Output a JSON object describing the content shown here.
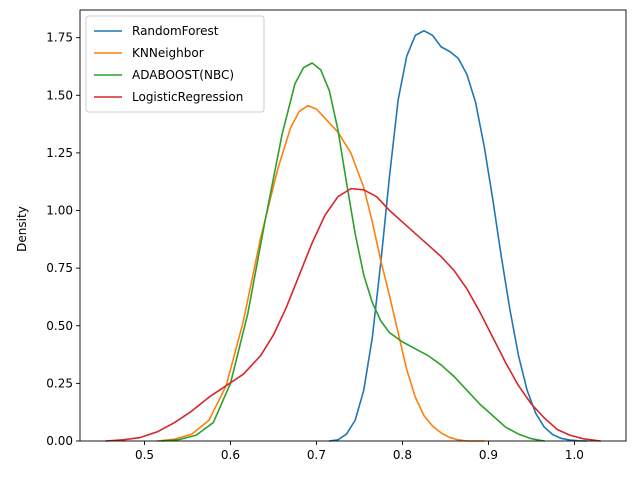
{
  "chart_data": {
    "type": "line",
    "title": "",
    "xlabel": "",
    "ylabel": "Density",
    "xlim": [
      0.425,
      1.06
    ],
    "ylim": [
      0,
      1.87
    ],
    "xticks": [
      0.5,
      0.6,
      0.7,
      0.8,
      0.9,
      1.0
    ],
    "xtick_labels": [
      "0.5",
      "0.6",
      "0.7",
      "0.8",
      "0.9",
      "1.0"
    ],
    "yticks": [
      0,
      0.25,
      0.5,
      0.75,
      1.0,
      1.25,
      1.5,
      1.75
    ],
    "ytick_labels": [
      "0.00",
      "0.25",
      "0.50",
      "0.75",
      "1.00",
      "1.25",
      "1.50",
      "1.75"
    ],
    "grid": false,
    "legend_position": "top-left",
    "series": [
      {
        "name": "RandomForest",
        "color": "#1f77b4",
        "points": [
          [
            0.715,
            0.0
          ],
          [
            0.725,
            0.005
          ],
          [
            0.735,
            0.03
          ],
          [
            0.745,
            0.09
          ],
          [
            0.755,
            0.22
          ],
          [
            0.765,
            0.45
          ],
          [
            0.775,
            0.78
          ],
          [
            0.785,
            1.15
          ],
          [
            0.795,
            1.48
          ],
          [
            0.805,
            1.67
          ],
          [
            0.815,
            1.76
          ],
          [
            0.825,
            1.78
          ],
          [
            0.835,
            1.76
          ],
          [
            0.845,
            1.71
          ],
          [
            0.855,
            1.69
          ],
          [
            0.865,
            1.66
          ],
          [
            0.875,
            1.59
          ],
          [
            0.885,
            1.47
          ],
          [
            0.895,
            1.28
          ],
          [
            0.905,
            1.05
          ],
          [
            0.915,
            0.8
          ],
          [
            0.925,
            0.57
          ],
          [
            0.935,
            0.37
          ],
          [
            0.945,
            0.22
          ],
          [
            0.955,
            0.12
          ],
          [
            0.965,
            0.06
          ],
          [
            0.975,
            0.027
          ],
          [
            0.985,
            0.011
          ],
          [
            0.995,
            0.004
          ],
          [
            1.005,
            0.001
          ],
          [
            1.015,
            0.0
          ]
        ]
      },
      {
        "name": "KNNeighbor",
        "color": "#ff7f0e",
        "points": [
          [
            0.515,
            0.0
          ],
          [
            0.535,
            0.008
          ],
          [
            0.555,
            0.03
          ],
          [
            0.575,
            0.09
          ],
          [
            0.595,
            0.24
          ],
          [
            0.615,
            0.52
          ],
          [
            0.635,
            0.88
          ],
          [
            0.655,
            1.18
          ],
          [
            0.67,
            1.36
          ],
          [
            0.68,
            1.43
          ],
          [
            0.69,
            1.455
          ],
          [
            0.7,
            1.44
          ],
          [
            0.71,
            1.4
          ],
          [
            0.725,
            1.34
          ],
          [
            0.74,
            1.25
          ],
          [
            0.755,
            1.1
          ],
          [
            0.765,
            0.95
          ],
          [
            0.775,
            0.78
          ],
          [
            0.785,
            0.63
          ],
          [
            0.795,
            0.47
          ],
          [
            0.805,
            0.31
          ],
          [
            0.815,
            0.19
          ],
          [
            0.825,
            0.11
          ],
          [
            0.835,
            0.065
          ],
          [
            0.845,
            0.035
          ],
          [
            0.855,
            0.015
          ],
          [
            0.865,
            0.005
          ],
          [
            0.875,
            0.0
          ],
          [
            0.895,
            0.0
          ]
        ]
      },
      {
        "name": "ADABOOST(NBC)",
        "color": "#2ca02c",
        "points": [
          [
            0.52,
            0.0
          ],
          [
            0.54,
            0.006
          ],
          [
            0.56,
            0.025
          ],
          [
            0.58,
            0.08
          ],
          [
            0.6,
            0.25
          ],
          [
            0.62,
            0.55
          ],
          [
            0.64,
            0.95
          ],
          [
            0.66,
            1.33
          ],
          [
            0.675,
            1.55
          ],
          [
            0.685,
            1.62
          ],
          [
            0.695,
            1.64
          ],
          [
            0.705,
            1.61
          ],
          [
            0.715,
            1.52
          ],
          [
            0.725,
            1.35
          ],
          [
            0.735,
            1.12
          ],
          [
            0.745,
            0.9
          ],
          [
            0.755,
            0.72
          ],
          [
            0.765,
            0.6
          ],
          [
            0.775,
            0.52
          ],
          [
            0.785,
            0.47
          ],
          [
            0.8,
            0.43
          ],
          [
            0.815,
            0.4
          ],
          [
            0.83,
            0.37
          ],
          [
            0.845,
            0.33
          ],
          [
            0.86,
            0.28
          ],
          [
            0.875,
            0.22
          ],
          [
            0.89,
            0.16
          ],
          [
            0.905,
            0.11
          ],
          [
            0.92,
            0.06
          ],
          [
            0.935,
            0.03
          ],
          [
            0.95,
            0.01
          ],
          [
            0.965,
            0.0
          ]
        ]
      },
      {
        "name": "LogisticRegression",
        "color": "#d62728",
        "points": [
          [
            0.455,
            0.0
          ],
          [
            0.475,
            0.005
          ],
          [
            0.495,
            0.015
          ],
          [
            0.515,
            0.04
          ],
          [
            0.535,
            0.08
          ],
          [
            0.555,
            0.13
          ],
          [
            0.575,
            0.19
          ],
          [
            0.595,
            0.24
          ],
          [
            0.615,
            0.29
          ],
          [
            0.635,
            0.37
          ],
          [
            0.65,
            0.46
          ],
          [
            0.665,
            0.58
          ],
          [
            0.68,
            0.72
          ],
          [
            0.695,
            0.86
          ],
          [
            0.71,
            0.98
          ],
          [
            0.725,
            1.06
          ],
          [
            0.74,
            1.095
          ],
          [
            0.755,
            1.09
          ],
          [
            0.77,
            1.06
          ],
          [
            0.785,
            1.0
          ],
          [
            0.8,
            0.95
          ],
          [
            0.815,
            0.9
          ],
          [
            0.83,
            0.85
          ],
          [
            0.845,
            0.8
          ],
          [
            0.86,
            0.74
          ],
          [
            0.875,
            0.66
          ],
          [
            0.89,
            0.56
          ],
          [
            0.905,
            0.45
          ],
          [
            0.92,
            0.34
          ],
          [
            0.935,
            0.24
          ],
          [
            0.95,
            0.16
          ],
          [
            0.965,
            0.1
          ],
          [
            0.98,
            0.05
          ],
          [
            0.995,
            0.025
          ],
          [
            1.01,
            0.01
          ],
          [
            1.03,
            0.0
          ]
        ]
      }
    ]
  }
}
